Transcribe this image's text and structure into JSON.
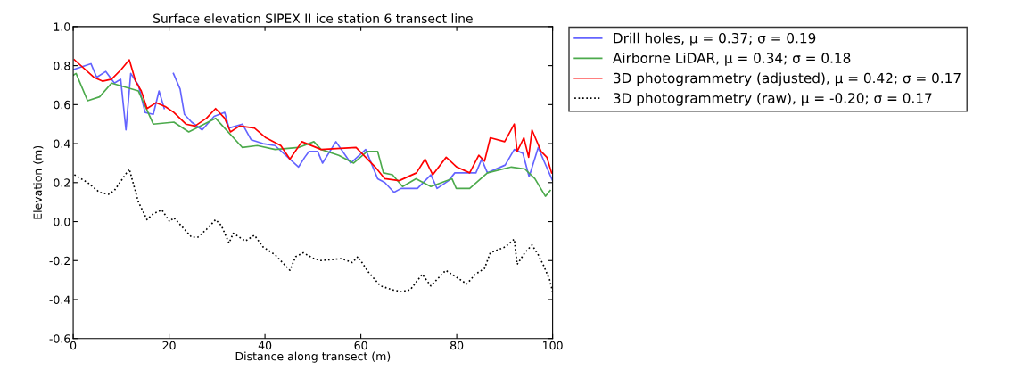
{
  "chart_data": {
    "type": "line",
    "title": "Surface elevation SIPEX II ice station 6 transect line",
    "xlabel": "Distance along transect (m)",
    "ylabel": "Elevation (m)",
    "xlim": [
      0,
      100
    ],
    "xticks": [
      0,
      20,
      40,
      60,
      80,
      100
    ],
    "ylim": [
      -0.6,
      1.0
    ],
    "yticks": [
      {
        "value": -0.6,
        "label": "-0.6"
      },
      {
        "value": -0.4,
        "label": "-0.4"
      },
      {
        "value": -0.2,
        "label": "-0.2"
      },
      {
        "value": 0.0,
        "label": "0.0"
      },
      {
        "value": 0.2,
        "label": "0.2"
      },
      {
        "value": 0.4,
        "label": "0.4"
      },
      {
        "value": 0.6,
        "label": "0.6"
      },
      {
        "value": 0.8,
        "label": "0.8"
      },
      {
        "value": 1.0,
        "label": "1.0"
      }
    ],
    "legend": "right",
    "series": [
      {
        "name": "Drill holes, μ = 0.37; σ = 0.19",
        "color": "#6464ff",
        "line_style": "solid",
        "x": [
          0,
          3.7,
          4.9,
          6.8,
          8.6,
          9.9,
          11,
          12,
          13.6,
          15,
          16.7,
          17.9,
          19,
          20,
          20.9,
          22.3,
          23.2,
          24.7,
          26.9,
          29.4,
          31.6,
          32.5,
          35.3,
          37.1,
          39.6,
          42.1,
          47,
          48.3,
          49.2,
          51,
          52,
          54.8,
          57.9,
          61,
          63.5,
          65,
          66.9,
          68.4,
          71.8,
          74.6,
          75.9,
          78.3,
          79.6,
          84,
          85.2,
          86.4,
          90.1,
          92,
          93.8,
          95.1,
          97,
          98.2,
          100
        ],
        "values": [
          0.78,
          0.81,
          0.74,
          0.77,
          0.71,
          0.73,
          0.47,
          0.76,
          0.7,
          0.56,
          0.55,
          0.67,
          0.58,
          null,
          0.76,
          0.68,
          0.55,
          0.51,
          0.47,
          0.54,
          0.56,
          0.48,
          0.5,
          0.42,
          0.4,
          0.39,
          0.28,
          0.33,
          0.36,
          0.36,
          0.3,
          0.41,
          0.3,
          0.37,
          0.22,
          0.2,
          0.15,
          0.17,
          0.17,
          0.24,
          0.17,
          0.21,
          0.25,
          0.25,
          0.32,
          0.25,
          0.29,
          0.37,
          0.35,
          0.23,
          0.38,
          0.31,
          0.21
        ]
      },
      {
        "name": "Airborne LiDAR, μ = 0.34; σ = 0.18",
        "color": "#4caa4c",
        "line_style": "solid",
        "x": [
          0,
          0.6,
          3,
          5.5,
          8,
          13.6,
          16.7,
          21,
          24.1,
          29.7,
          35.3,
          38.4,
          42.1,
          47,
          50.2,
          51.7,
          55.4,
          58.5,
          61.3,
          63.5,
          64.7,
          66.6,
          68.7,
          71.5,
          74.6,
          79,
          79.9,
          82.7,
          86.4,
          91.4,
          94.2,
          96.3,
          98.5,
          99.5
        ],
        "values": [
          0.75,
          0.76,
          0.62,
          0.64,
          0.71,
          0.67,
          0.5,
          0.51,
          0.46,
          0.53,
          0.38,
          0.39,
          0.37,
          0.38,
          0.41,
          0.37,
          0.34,
          0.3,
          0.36,
          0.36,
          0.25,
          0.24,
          0.18,
          0.22,
          0.18,
          0.22,
          0.17,
          0.17,
          0.25,
          0.28,
          0.27,
          0.22,
          0.13,
          0.16
        ]
      },
      {
        "name": "3D photogrammetry (adjusted), μ = 0.42; σ = 0.17",
        "color": "#ff0000",
        "line_style": "solid",
        "x": [
          0.25,
          4.3,
          6.1,
          8,
          10,
          11.7,
          13,
          14.2,
          15.4,
          17.3,
          19.2,
          21,
          23.5,
          25.4,
          27.8,
          29.7,
          31.6,
          32.8,
          34.7,
          37.8,
          40.2,
          43.3,
          45.2,
          47.7,
          51.7,
          59,
          63,
          65,
          68,
          71.6,
          73.4,
          75,
          77.8,
          80,
          82.7,
          84.6,
          85.8,
          87,
          90,
          92,
          92.6,
          94,
          95,
          95.7,
          97.6,
          98.8,
          99.8
        ],
        "values": [
          0.83,
          0.74,
          0.72,
          0.73,
          0.78,
          0.83,
          0.72,
          0.67,
          0.58,
          0.61,
          0.59,
          0.56,
          0.5,
          0.49,
          0.53,
          0.58,
          0.53,
          0.46,
          0.49,
          0.48,
          0.43,
          0.39,
          0.32,
          0.41,
          0.37,
          0.38,
          0.28,
          0.22,
          0.21,
          0.25,
          0.32,
          0.24,
          0.33,
          0.28,
          0.25,
          0.34,
          0.31,
          0.43,
          0.41,
          0.5,
          0.36,
          0.43,
          0.33,
          0.47,
          0.36,
          0.33,
          0.25
        ]
      },
      {
        "name": "3D photogrammetry (raw), μ = -0.20; σ = 0.17",
        "color": "#000000",
        "line_style": "dotted",
        "x": [
          0.25,
          3,
          5.5,
          7.4,
          8.6,
          11.7,
          13.6,
          15.4,
          16.7,
          18.5,
          20.1,
          21,
          24.7,
          26,
          27.8,
          29.7,
          30.9,
          32.5,
          33.4,
          35.9,
          37.8,
          39.6,
          42.1,
          45.2,
          46.4,
          48,
          50.2,
          51.7,
          56,
          58.2,
          59.4,
          61.6,
          64.1,
          66.6,
          68.4,
          70.3,
          72.8,
          74.6,
          77.7,
          79.6,
          82.1,
          83.9,
          85.8,
          87,
          90.1,
          92,
          92.6,
          94.2,
          95.7,
          97,
          98.2,
          99.4,
          100
        ],
        "values": [
          0.24,
          0.2,
          0.15,
          0.14,
          0.16,
          0.27,
          0.1,
          0.01,
          0.04,
          0.06,
          0.0,
          0.02,
          -0.08,
          -0.08,
          -0.04,
          0.01,
          -0.02,
          -0.11,
          -0.06,
          -0.1,
          -0.07,
          -0.13,
          -0.17,
          -0.25,
          -0.18,
          -0.16,
          -0.19,
          -0.2,
          -0.19,
          -0.21,
          -0.18,
          -0.26,
          -0.33,
          -0.35,
          -0.36,
          -0.35,
          -0.27,
          -0.33,
          -0.25,
          -0.28,
          -0.32,
          -0.27,
          -0.24,
          -0.16,
          -0.13,
          -0.09,
          -0.22,
          -0.16,
          -0.12,
          -0.17,
          -0.23,
          -0.3,
          -0.36
        ]
      }
    ]
  }
}
